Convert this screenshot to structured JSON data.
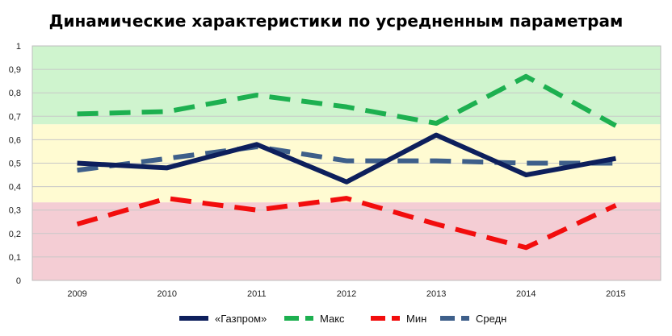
{
  "chart_data": {
    "type": "line",
    "title": "Динамические характеристики по усредненным параметрам",
    "xlabel": "",
    "ylabel": "",
    "categories": [
      "2009",
      "2010",
      "2011",
      "2012",
      "2013",
      "2014",
      "2015"
    ],
    "ylim": [
      0,
      1
    ],
    "y_ticks": [
      "0",
      "0,1",
      "0,2",
      "0,3",
      "0,4",
      "0,5",
      "0,6",
      "0,7",
      "0,8",
      "0,9",
      "1"
    ],
    "bands": [
      {
        "from": 0,
        "to": 0.333,
        "color": "#f4cdd4"
      },
      {
        "from": 0.333,
        "to": 0.666,
        "color": "#fffbd2"
      },
      {
        "from": 0.666,
        "to": 1,
        "color": "#cff4ce"
      }
    ],
    "grid": true,
    "legend_position": "bottom",
    "series": [
      {
        "name": "«Газпром»",
        "color": "#0d1f5c",
        "dashed": false,
        "values": [
          0.5,
          0.48,
          0.58,
          0.42,
          0.62,
          0.45,
          0.52
        ]
      },
      {
        "name": "Макс",
        "color": "#1db050",
        "dashed": true,
        "values": [
          0.71,
          0.72,
          0.79,
          0.74,
          0.67,
          0.87,
          0.66
        ]
      },
      {
        "name": "Мин",
        "color": "#f20d0d",
        "dashed": true,
        "values": [
          0.24,
          0.35,
          0.3,
          0.35,
          0.24,
          0.14,
          0.32
        ]
      },
      {
        "name": "Средн",
        "color": "#3e5f8a",
        "dashed": true,
        "values": [
          0.47,
          0.52,
          0.57,
          0.51,
          0.51,
          0.5,
          0.5
        ]
      }
    ]
  }
}
